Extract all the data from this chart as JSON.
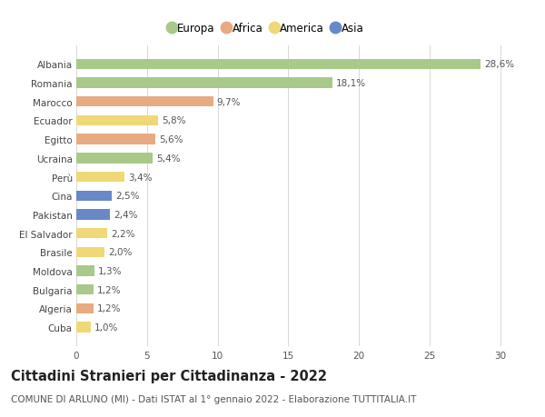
{
  "countries": [
    "Albania",
    "Romania",
    "Marocco",
    "Ecuador",
    "Egitto",
    "Ucraina",
    "Perù",
    "Cina",
    "Pakistan",
    "El Salvador",
    "Brasile",
    "Moldova",
    "Bulgaria",
    "Algeria",
    "Cuba"
  ],
  "values": [
    28.6,
    18.1,
    9.7,
    5.8,
    5.6,
    5.4,
    3.4,
    2.5,
    2.4,
    2.2,
    2.0,
    1.3,
    1.2,
    1.2,
    1.0
  ],
  "labels": [
    "28,6%",
    "18,1%",
    "9,7%",
    "5,8%",
    "5,6%",
    "5,4%",
    "3,4%",
    "2,5%",
    "2,4%",
    "2,2%",
    "2,0%",
    "1,3%",
    "1,2%",
    "1,2%",
    "1,0%"
  ],
  "regions": [
    "Europa",
    "Europa",
    "Africa",
    "America",
    "Africa",
    "Europa",
    "America",
    "Asia",
    "Asia",
    "America",
    "America",
    "Europa",
    "Europa",
    "Africa",
    "America"
  ],
  "region_colors": {
    "Europa": "#a8c98a",
    "Africa": "#e8aa80",
    "America": "#f0d878",
    "Asia": "#6888c8"
  },
  "legend_order": [
    "Europa",
    "Africa",
    "America",
    "Asia"
  ],
  "title": "Cittadini Stranieri per Cittadinanza - 2022",
  "subtitle": "COMUNE DI ARLUNO (MI) - Dati ISTAT al 1° gennaio 2022 - Elaborazione TUTTITALIA.IT",
  "xlim": [
    0,
    32
  ],
  "xticks": [
    0,
    5,
    10,
    15,
    20,
    25,
    30
  ],
  "background_color": "#ffffff",
  "grid_color": "#d8d8d8",
  "title_fontsize": 10.5,
  "subtitle_fontsize": 7.5,
  "label_fontsize": 7.5,
  "tick_fontsize": 7.5,
  "legend_fontsize": 8.5
}
